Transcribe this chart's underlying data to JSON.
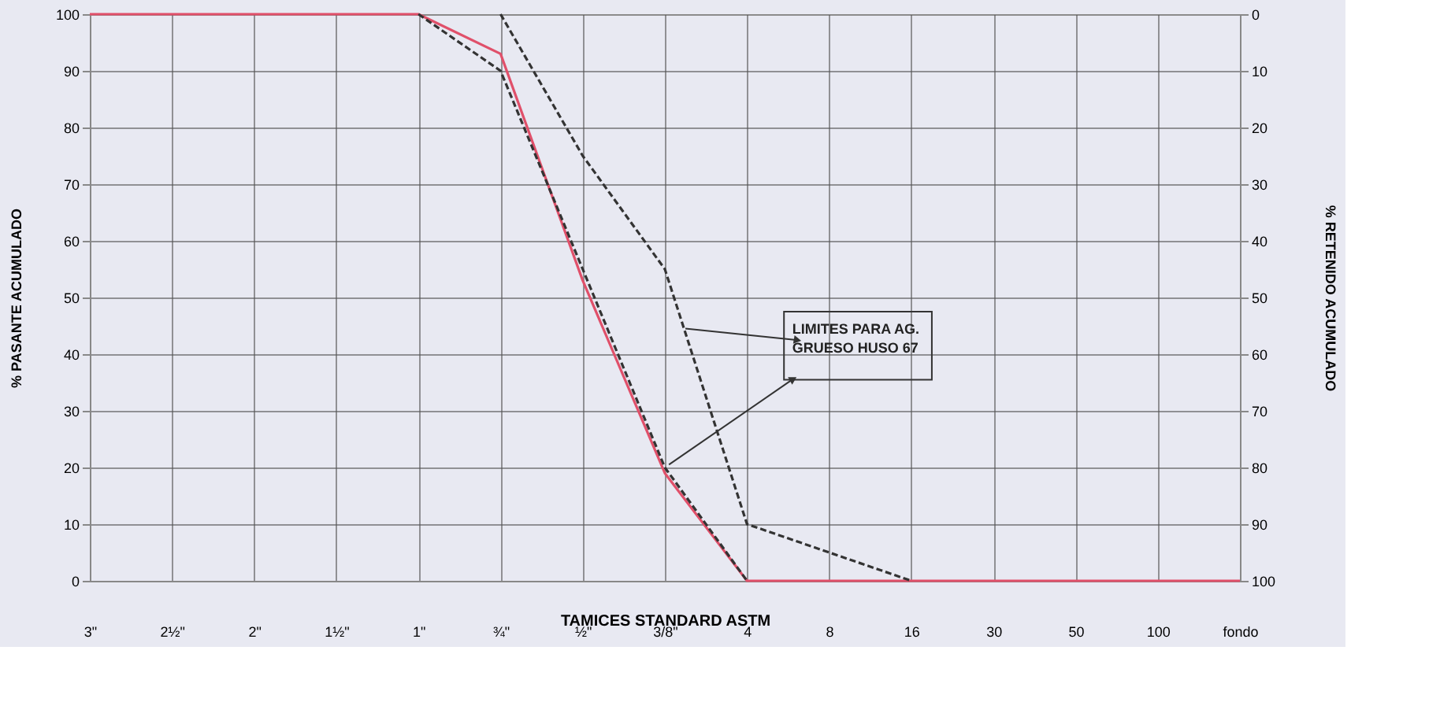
{
  "chart_data": {
    "type": "line",
    "ylabel": "% PASANTE ACUMULADO",
    "y2label": "% RETENIDO ACUMULADO",
    "xlabel": "TAMICES STANDARD ASTM",
    "categories": [
      "3\"",
      "2½\"",
      "2\"",
      "1½\"",
      "1\"",
      "¾\"",
      "½\"",
      "3/8\"",
      "4",
      "8",
      "16",
      "30",
      "50",
      "100",
      "fondo"
    ],
    "series": [
      {
        "color": "#e0506a",
        "line_style": "solid",
        "values": [
          100,
          100,
          100,
          100,
          100,
          93,
          53,
          19,
          0,
          0,
          0,
          0,
          0,
          0,
          0
        ]
      },
      {
        "color": "#333333",
        "line_style": "dashed",
        "values": [
          null,
          null,
          null,
          null,
          100,
          90,
          55,
          20,
          0,
          null,
          null,
          null,
          null,
          null,
          null
        ]
      },
      {
        "color": "#333333",
        "line_style": "dashed",
        "values": [
          null,
          null,
          null,
          null,
          null,
          100,
          75,
          55,
          10,
          5,
          0,
          null,
          null,
          null,
          null
        ]
      }
    ],
    "ylim": [
      0,
      100
    ],
    "yticks": [
      0,
      10,
      20,
      30,
      40,
      50,
      60,
      70,
      80,
      90,
      100
    ],
    "y2lim": [
      100,
      0
    ],
    "y2ticks": [
      0,
      10,
      20,
      30,
      40,
      50,
      60,
      70,
      80,
      90,
      100
    ],
    "grid": true,
    "legend": false,
    "marker": "none",
    "annotations": [
      "LIMITES PARA AG. GRUESO HUSO 67"
    ]
  }
}
